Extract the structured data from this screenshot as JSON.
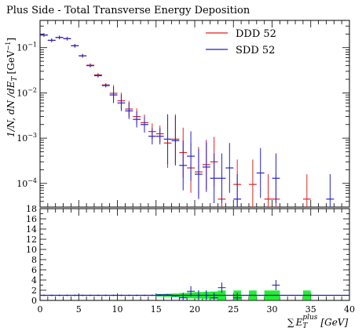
{
  "chart_data": {
    "type": "scatter",
    "title": "Plus Side - Total Transverse Energy Deposition",
    "xlabel_prefix": "∑",
    "xlabel_main": "E",
    "xlabel_sub": "T",
    "xlabel_sup": "plus",
    "xlabel_unit": "[GeV]",
    "ylabel": "1/N, dN /dE",
    "ylabel_sub": "T",
    "ylabel_unit": "[GeV",
    "ylabel_unit_sup": "−1",
    "ylabel_unit_close": "]",
    "xlim": [
      0,
      40
    ],
    "x_ticks": [
      "0",
      "5",
      "10",
      "15",
      "20",
      "25",
      "30",
      "35",
      "40"
    ],
    "top_panel": {
      "yscale": "log",
      "ylim": [
        3e-05,
        0.4
      ],
      "y_ticks": [
        {
          "value": 0.1,
          "base": "10",
          "exp": "−1"
        },
        {
          "value": 0.01,
          "base": "10",
          "exp": "−2"
        },
        {
          "value": 0.001,
          "base": "10",
          "exp": "−3"
        },
        {
          "value": 0.0001,
          "base": "10",
          "exp": "−4"
        }
      ],
      "legend_position": "top-right",
      "series": [
        {
          "name": "DDD 52",
          "color": "#dd2222",
          "points": [
            {
              "x": 0.5,
              "y": 0.19
            },
            {
              "x": 1.5,
              "y": 0.145
            },
            {
              "x": 2.5,
              "y": 0.168
            },
            {
              "x": 3.5,
              "y": 0.158
            },
            {
              "x": 4.5,
              "y": 0.11
            },
            {
              "x": 5.5,
              "y": 0.066
            },
            {
              "x": 6.5,
              "y": 0.041
            },
            {
              "x": 7.5,
              "y": 0.025
            },
            {
              "x": 8.5,
              "y": 0.015
            },
            {
              "x": 9.5,
              "y": 0.0098
            },
            {
              "x": 10.5,
              "y": 0.0067
            },
            {
              "x": 11.5,
              "y": 0.0044
            },
            {
              "x": 12.5,
              "y": 0.003
            },
            {
              "x": 13.5,
              "y": 0.0022
            },
            {
              "x": 14.5,
              "y": 0.0014
            },
            {
              "x": 15.5,
              "y": 0.00125
            },
            {
              "x": 16.5,
              "y": 0.00078
            },
            {
              "x": 17.5,
              "y": 0.00095
            },
            {
              "x": 18.5,
              "y": 0.00048
            },
            {
              "x": 19.5,
              "y": 0.00022
            },
            {
              "x": 20.5,
              "y": 0.00018
            },
            {
              "x": 21.5,
              "y": 0.00026
            },
            {
              "x": 22.5,
              "y": 0.0003
            },
            {
              "x": 23.5,
              "y": 4.5e-05
            },
            {
              "x": 25.5,
              "y": 9.5e-05
            },
            {
              "x": 27.5,
              "y": 9.5e-05
            },
            {
              "x": 29.5,
              "y": 4.5e-05
            },
            {
              "x": 30.5,
              "y": 4.5e-05
            },
            {
              "x": 34.5,
              "y": 4.5e-05
            }
          ]
        },
        {
          "name": "SDD 52",
          "color": "#2222cc",
          "points": [
            {
              "x": 0.5,
              "y": 0.19
            },
            {
              "x": 1.5,
              "y": 0.145
            },
            {
              "x": 2.5,
              "y": 0.168
            },
            {
              "x": 3.5,
              "y": 0.158
            },
            {
              "x": 4.5,
              "y": 0.11
            },
            {
              "x": 5.5,
              "y": 0.066
            },
            {
              "x": 6.5,
              "y": 0.04
            },
            {
              "x": 7.5,
              "y": 0.024
            },
            {
              "x": 8.5,
              "y": 0.0145
            },
            {
              "x": 9.5,
              "y": 0.009
            },
            {
              "x": 10.5,
              "y": 0.006
            },
            {
              "x": 11.5,
              "y": 0.004
            },
            {
              "x": 12.5,
              "y": 0.0026
            },
            {
              "x": 13.5,
              "y": 0.002
            },
            {
              "x": 14.5,
              "y": 0.0011
            },
            {
              "x": 15.5,
              "y": 0.0011
            },
            {
              "x": 16.5,
              "y": 0.00095
            },
            {
              "x": 17.5,
              "y": 0.00088
            },
            {
              "x": 18.5,
              "y": 0.00025
            },
            {
              "x": 19.5,
              "y": 0.0004
            },
            {
              "x": 20.5,
              "y": 0.00016
            },
            {
              "x": 21.5,
              "y": 0.00023
            },
            {
              "x": 22.5,
              "y": 0.00013
            },
            {
              "x": 23.5,
              "y": 0.00013
            },
            {
              "x": 24.5,
              "y": 0.00022
            },
            {
              "x": 25.5,
              "y": 4.5e-05
            },
            {
              "x": 28.5,
              "y": 0.00017
            },
            {
              "x": 30.5,
              "y": 0.00013
            },
            {
              "x": 37.5,
              "y": 4.5e-05
            }
          ]
        }
      ]
    },
    "ratio_panel": {
      "ylim": [
        0,
        18
      ],
      "y_ticks": [
        "0",
        "2",
        "4",
        "6",
        "8",
        "10",
        "12",
        "14",
        "16",
        "18"
      ],
      "line_color": "#1a1aaa",
      "band_color": "#22ee33",
      "points": [
        {
          "x": 0.5,
          "y": 1.0
        },
        {
          "x": 1.5,
          "y": 1.0
        },
        {
          "x": 2.5,
          "y": 1.0
        },
        {
          "x": 3.5,
          "y": 1.0
        },
        {
          "x": 4.5,
          "y": 1.0
        },
        {
          "x": 5.5,
          "y": 1.0
        },
        {
          "x": 6.5,
          "y": 1.0
        },
        {
          "x": 7.5,
          "y": 1.0
        },
        {
          "x": 8.5,
          "y": 1.0
        },
        {
          "x": 9.5,
          "y": 1.0
        },
        {
          "x": 10.5,
          "y": 1.0
        },
        {
          "x": 11.5,
          "y": 1.0
        },
        {
          "x": 12.5,
          "y": 1.0
        },
        {
          "x": 13.5,
          "y": 1.0
        },
        {
          "x": 14.5,
          "y": 1.0
        },
        {
          "x": 15.5,
          "y": 1.1
        },
        {
          "x": 16.5,
          "y": 1.1
        },
        {
          "x": 17.5,
          "y": 0.9
        },
        {
          "x": 18.5,
          "y": 0.5
        },
        {
          "x": 19.5,
          "y": 1.8
        },
        {
          "x": 20.5,
          "y": 1.0
        },
        {
          "x": 21.5,
          "y": 1.0
        },
        {
          "x": 22.5,
          "y": 0.5
        },
        {
          "x": 23.5,
          "y": 2.5
        },
        {
          "x": 25.5,
          "y": 0.5
        },
        {
          "x": 30.5,
          "y": 3.0
        }
      ],
      "bands": [
        {
          "x0": 15,
          "x1": 16,
          "height": 0.5
        },
        {
          "x0": 16,
          "x1": 17,
          "height": 0.6
        },
        {
          "x0": 17,
          "x1": 18,
          "height": 0.7
        },
        {
          "x0": 18,
          "x1": 19,
          "height": 0.9
        },
        {
          "x0": 19,
          "x1": 20,
          "height": 1.2
        },
        {
          "x0": 20,
          "x1": 21,
          "height": 1.3
        },
        {
          "x0": 21,
          "x1": 22,
          "height": 1.4
        },
        {
          "x0": 22,
          "x1": 23,
          "height": 1.5
        },
        {
          "x0": 23,
          "x1": 24,
          "height": 1.9
        },
        {
          "x0": 25,
          "x1": 26,
          "height": 1.9
        },
        {
          "x0": 27,
          "x1": 28,
          "height": 1.9
        },
        {
          "x0": 29,
          "x1": 30,
          "height": 1.9
        },
        {
          "x0": 30,
          "x1": 31,
          "height": 1.9
        },
        {
          "x0": 34,
          "x1": 35,
          "height": 1.9
        }
      ]
    }
  }
}
